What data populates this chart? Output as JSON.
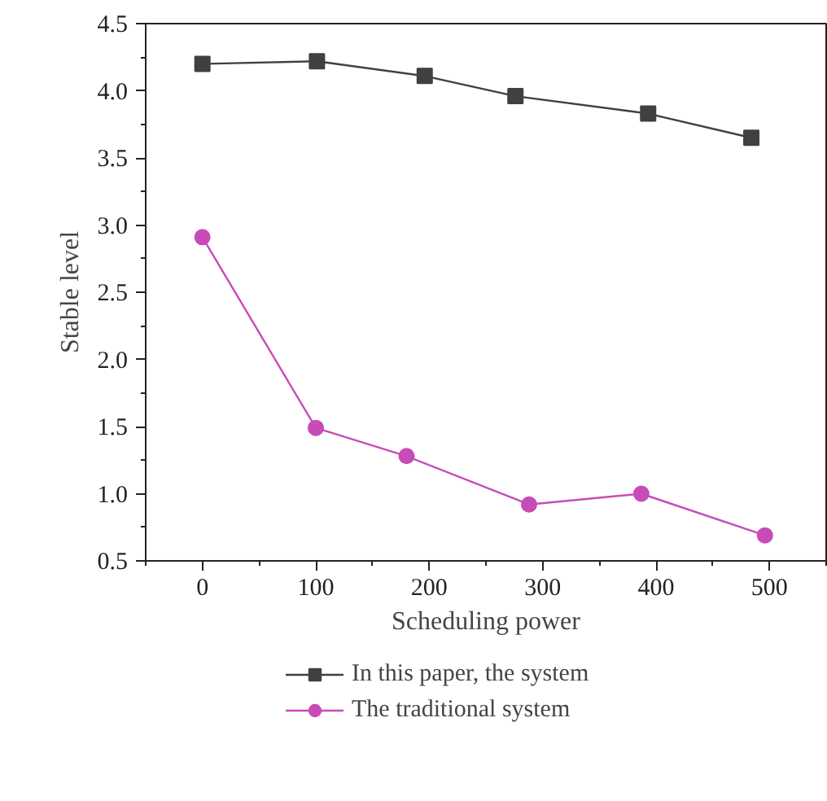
{
  "chart_data": {
    "type": "line",
    "xlabel": "Scheduling power",
    "ylabel": "Stable level",
    "xlim": [
      -50,
      550
    ],
    "ylim": [
      0.5,
      4.5
    ],
    "xticks": [
      0,
      100,
      200,
      300,
      400,
      500
    ],
    "yticks": [
      0.5,
      {
        "value": 1,
        "label": "1.0"
      },
      1.5,
      {
        "value": 2,
        "label": "2.0"
      },
      2.5,
      {
        "value": 3,
        "label": "3.0"
      },
      3.5,
      {
        "value": 4,
        "label": "4.0"
      },
      4.5
    ],
    "legend": "bottom",
    "grid": false,
    "series": [
      {
        "name": "In this paper, the system",
        "color": "#404040",
        "marker": "square",
        "x": [
          0,
          101,
          196,
          276,
          393,
          484
        ],
        "values": [
          4.2,
          4.22,
          4.11,
          3.96,
          3.83,
          3.65
        ]
      },
      {
        "name": "The traditional system",
        "color": "#c84bb8",
        "marker": "circle",
        "x": [
          0,
          100,
          180,
          288,
          387,
          496
        ],
        "values": [
          2.91,
          1.49,
          1.28,
          0.92,
          1.0,
          0.69
        ]
      }
    ]
  }
}
